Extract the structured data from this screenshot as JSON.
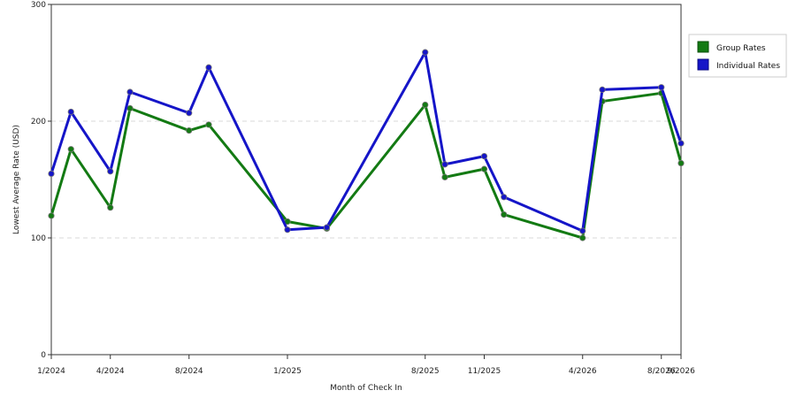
{
  "chart_data": {
    "type": "line",
    "xlabel": "Month of Check In",
    "ylabel": "Lowest Average Rate (USD)",
    "ylim": [
      0,
      300
    ],
    "yticks": [
      0,
      100,
      200,
      300
    ],
    "grid": "horizontal dashed",
    "legend_position": "top-right",
    "x_tick_labels": [
      "1/2024",
      "4/2024",
      "8/2024",
      "1/2025",
      "8/2025",
      "11/2025",
      "4/2026",
      "8/2026",
      "9/2026"
    ],
    "x": [
      "1/2024",
      "2/2024",
      "4/2024",
      "5/2024",
      "8/2024",
      "9/2024",
      "1/2025",
      "3/2025",
      "8/2025",
      "9/2025",
      "11/2025",
      "12/2025",
      "4/2026",
      "5/2026",
      "8/2026",
      "9/2026"
    ],
    "series": [
      {
        "name": "Group Rates",
        "color": "#137a13",
        "values": [
          119,
          176,
          126,
          211,
          192,
          197,
          114,
          108,
          214,
          152,
          159,
          120,
          100,
          217,
          224,
          164
        ]
      },
      {
        "name": "Individual Rates",
        "color": "#1515c8",
        "values": [
          155,
          208,
          157,
          225,
          207,
          246,
          107,
          109,
          259,
          163,
          170,
          135,
          106,
          227,
          229,
          181
        ]
      }
    ]
  }
}
